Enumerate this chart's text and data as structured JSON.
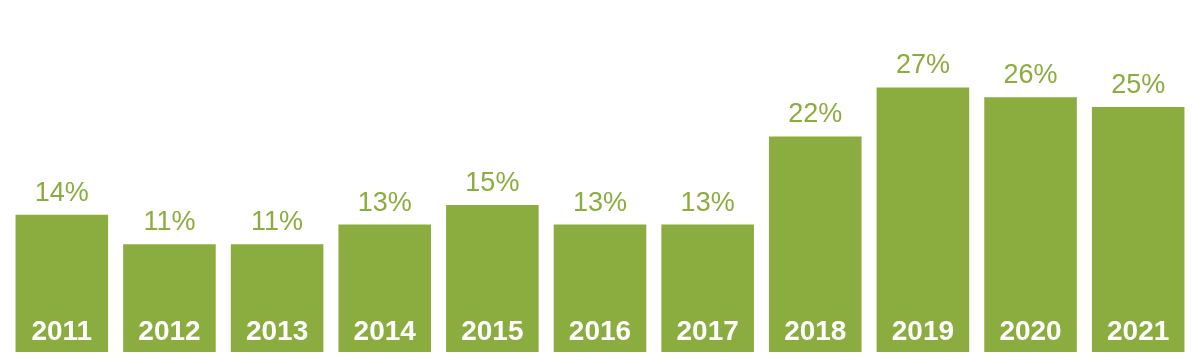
{
  "chart_data": {
    "type": "bar",
    "categories": [
      "2011",
      "2012",
      "2013",
      "2014",
      "2015",
      "2016",
      "2017",
      "2018",
      "2019",
      "2020",
      "2021"
    ],
    "values": [
      14,
      11,
      11,
      13,
      15,
      13,
      13,
      22,
      27,
      26,
      25
    ],
    "value_labels": [
      "14%",
      "11%",
      "11%",
      "13%",
      "15%",
      "13%",
      "13%",
      "22%",
      "27%",
      "26%",
      "25%"
    ],
    "color": "#8bac3e"
  }
}
